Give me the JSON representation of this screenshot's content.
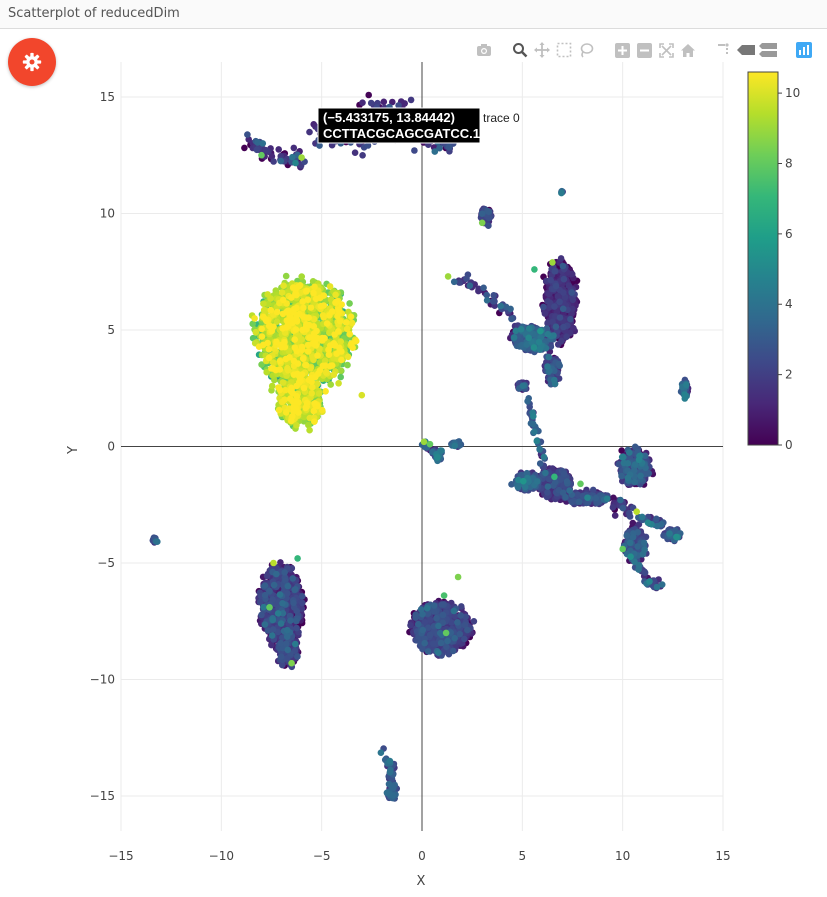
{
  "panel": {
    "title": "Scatterplot of reducedDim"
  },
  "toolbar": {
    "buttons": [
      "camera-icon",
      "zoom-icon",
      "pan-icon",
      "box-select-icon",
      "lasso-icon",
      "zoom-in-icon",
      "zoom-out-icon",
      "autoscale-icon",
      "reset-axes-icon",
      "spike-lines-icon",
      "hover-closest-icon",
      "hover-compare-icon",
      "plotly-logo-icon"
    ]
  },
  "colors": {
    "gear_button": "#f2462c",
    "viridis": [
      "#440154",
      "#482878",
      "#3e4989",
      "#31688e",
      "#26828e",
      "#1f9e89",
      "#35b779",
      "#6ece58",
      "#b5de2b",
      "#fde725"
    ]
  },
  "chart_data": {
    "type": "scatter",
    "xlabel": "X",
    "ylabel": "Y",
    "xlim": [
      -15,
      15
    ],
    "ylim": [
      -16.5,
      16.5
    ],
    "xticks": [
      -15,
      -10,
      -5,
      0,
      5,
      10,
      15
    ],
    "yticks": [
      -15,
      -10,
      -5,
      0,
      5,
      10,
      15
    ],
    "grid": true,
    "zeroline": true,
    "colorbar": {
      "min": 0,
      "max": 10.6,
      "ticks": [
        0,
        2,
        4,
        6,
        8,
        10
      ],
      "colorscale": "viridis"
    },
    "hover": {
      "x": -5.433175,
      "y": 13.84442,
      "label": "(−5.433175, 13.84442)",
      "cell": "CCTTACGCAGCGATCC.1",
      "trace": "trace 0"
    },
    "clusters": [
      {
        "cx": -5.9,
        "cy": 4.8,
        "sx": 1.8,
        "sy": 1.7,
        "n": 1300,
        "c": 9.0,
        "cs": 1.3
      },
      {
        "cx": -6.1,
        "cy": 1.9,
        "sx": 0.9,
        "sy": 0.8,
        "n": 300,
        "c": 9.5,
        "cs": 1.0
      },
      {
        "cx": -7.0,
        "cy": -6.8,
        "sx": 0.8,
        "sy": 1.3,
        "n": 700,
        "c": 1.3,
        "cs": 1.0
      },
      {
        "cx": -6.7,
        "cy": -8.8,
        "sx": 0.4,
        "sy": 0.5,
        "n": 100,
        "c": 1.5,
        "cs": 1.0
      },
      {
        "cx": 0.9,
        "cy": -7.8,
        "sx": 1.1,
        "sy": 0.8,
        "n": 800,
        "c": 1.2,
        "cs": 1.0
      },
      {
        "cx": 6.9,
        "cy": 6.2,
        "sx": 0.6,
        "sy": 1.3,
        "n": 520,
        "c": 0.7,
        "cs": 0.8
      },
      {
        "cx": 5.5,
        "cy": 4.6,
        "sx": 0.8,
        "sy": 0.4,
        "n": 200,
        "c": 2.5,
        "cs": 1.2
      },
      {
        "cx": 6.5,
        "cy": 3.3,
        "sx": 0.3,
        "sy": 0.5,
        "n": 80,
        "c": 2.0,
        "cs": 1.0
      },
      {
        "cx": 3.2,
        "cy": 9.9,
        "sx": 0.2,
        "sy": 0.3,
        "n": 60,
        "c": 1.5,
        "cs": 1.0
      },
      {
        "cx": 6.6,
        "cy": -1.6,
        "sx": 0.6,
        "sy": 0.5,
        "n": 300,
        "c": 1.0,
        "cs": 1.0
      },
      {
        "cx": 5.2,
        "cy": -1.5,
        "sx": 0.5,
        "sy": 0.3,
        "n": 100,
        "c": 2.5,
        "cs": 1.0
      },
      {
        "cx": 8.3,
        "cy": -2.2,
        "sx": 0.8,
        "sy": 0.2,
        "n": 140,
        "c": 1.5,
        "cs": 1.0
      },
      {
        "cx": 10.6,
        "cy": -0.9,
        "sx": 0.6,
        "sy": 0.6,
        "n": 260,
        "c": 2.0,
        "cs": 1.2
      },
      {
        "cx": 10.6,
        "cy": -4.2,
        "sx": 0.4,
        "sy": 0.6,
        "n": 170,
        "c": 1.8,
        "cs": 1.0
      },
      {
        "cx": 12.5,
        "cy": -3.8,
        "sx": 0.3,
        "sy": 0.2,
        "n": 40,
        "c": 2.5,
        "cs": 1.0
      },
      {
        "cx": 13.1,
        "cy": 2.5,
        "sx": 0.15,
        "sy": 0.3,
        "n": 30,
        "c": 3.0,
        "cs": 1.0
      },
      {
        "cx": -13.3,
        "cy": -4.0,
        "sx": 0.1,
        "sy": 0.1,
        "n": 10,
        "c": 2.5,
        "cs": 1.0
      },
      {
        "cx": -1.5,
        "cy": -14.8,
        "sx": 0.2,
        "sy": 0.3,
        "n": 45,
        "c": 2.5,
        "cs": 1.0
      },
      {
        "cx": 1.7,
        "cy": 0.1,
        "sx": 0.2,
        "sy": 0.1,
        "n": 20,
        "c": 2.5,
        "cs": 1.0
      },
      {
        "cx": 0.8,
        "cy": -0.3,
        "sx": 0.2,
        "sy": 0.2,
        "n": 16,
        "c": 3.0,
        "cs": 1.2
      },
      {
        "cx": 7.0,
        "cy": 10.9,
        "sx": 0.05,
        "sy": 0.05,
        "n": 4,
        "c": 3.0,
        "cs": 1.0
      },
      {
        "cx": 5.0,
        "cy": 2.6,
        "sx": 0.2,
        "sy": 0.15,
        "n": 20,
        "c": 2.0,
        "cs": 1.0
      }
    ],
    "paths": [
      {
        "x": [
          -8.6,
          -7.6,
          -6.6,
          -6.0
        ],
        "y": [
          13.1,
          12.6,
          12.3,
          12.3
        ],
        "n": 70,
        "w": 0.2,
        "c": 1.5,
        "cs": 1.2
      },
      {
        "x": [
          -5.4,
          -3.5,
          -1.6,
          0.5,
          1.2
        ],
        "y": [
          13.6,
          13.2,
          13.6,
          13.2,
          13.0
        ],
        "n": 160,
        "w": 0.25,
        "c": 1.5,
        "cs": 1.2
      },
      {
        "x": [
          -3.5,
          -1.6,
          0.0,
          0.5
        ],
        "y": [
          14.2,
          14.6,
          14.2,
          13.9
        ],
        "n": 60,
        "w": 0.25,
        "c": 1.2,
        "cs": 1.0
      },
      {
        "x": [
          1.5,
          3.0,
          4.5,
          5.2
        ],
        "y": [
          7.2,
          6.7,
          5.6,
          4.8
        ],
        "n": 60,
        "w": 0.12,
        "c": 2.0,
        "cs": 1.0
      },
      {
        "x": [
          5.2,
          5.6,
          5.9,
          6.1
        ],
        "y": [
          2.2,
          0.8,
          -0.2,
          -1.0
        ],
        "n": 40,
        "w": 0.08,
        "c": 3.0,
        "cs": 1.0
      },
      {
        "x": [
          -2.0,
          -1.6,
          -1.5
        ],
        "y": [
          -12.9,
          -13.7,
          -14.4
        ],
        "n": 30,
        "w": 0.1,
        "c": 2.5,
        "cs": 1.0
      },
      {
        "x": [
          6.5,
          8.0,
          9.5,
          10.4
        ],
        "y": [
          -2.0,
          -2.2,
          -2.3,
          -2.8
        ],
        "n": 70,
        "w": 0.15,
        "c": 1.5,
        "cs": 1.0
      },
      {
        "x": [
          10.5,
          10.8,
          11.3,
          11.8
        ],
        "y": [
          -4.5,
          -5.2,
          -5.8,
          -6.0
        ],
        "n": 40,
        "w": 0.12,
        "c": 2.5,
        "cs": 1.0
      },
      {
        "x": [
          10.8,
          11.8,
          12.3
        ],
        "y": [
          -3.1,
          -3.3,
          -3.6
        ],
        "n": 25,
        "w": 0.1,
        "c": 2.5,
        "cs": 1.0
      },
      {
        "x": [
          0.0,
          0.5,
          0.9
        ],
        "y": [
          0.2,
          -0.2,
          -0.6
        ],
        "n": 20,
        "w": 0.06,
        "c": 2.5,
        "cs": 1.0
      }
    ],
    "outliers": [
      {
        "x": -6.0,
        "y": 12.4,
        "c": 9.0
      },
      {
        "x": -8.0,
        "y": 12.5,
        "c": 8.0
      },
      {
        "x": 3.0,
        "y": 9.6,
        "c": 8.5
      },
      {
        "x": 1.3,
        "y": 7.3,
        "c": 9.0
      },
      {
        "x": 6.5,
        "y": 7.9,
        "c": 9.0
      },
      {
        "x": 5.6,
        "y": 7.6,
        "c": 7.0
      },
      {
        "x": 0.1,
        "y": 0.2,
        "c": 9.0
      },
      {
        "x": 0.4,
        "y": 0.1,
        "c": 8.0
      },
      {
        "x": 7.9,
        "y": -1.6,
        "c": 8.0
      },
      {
        "x": 6.6,
        "y": -1.3,
        "c": 7.0
      },
      {
        "x": 10.7,
        "y": -2.8,
        "c": 9.5
      },
      {
        "x": 10.0,
        "y": -4.4,
        "c": 8.0
      },
      {
        "x": -7.4,
        "y": -5.0,
        "c": 9.5
      },
      {
        "x": -6.2,
        "y": -4.8,
        "c": 7.0
      },
      {
        "x": -7.6,
        "y": -6.9,
        "c": 8.0
      },
      {
        "x": -6.5,
        "y": -9.3,
        "c": 8.5
      },
      {
        "x": 1.8,
        "y": -5.6,
        "c": 8.5
      },
      {
        "x": 1.1,
        "y": -6.4,
        "c": 7.5
      },
      {
        "x": 1.2,
        "y": -8.0,
        "c": 8.0
      },
      {
        "x": -5.6,
        "y": 0.7,
        "c": 9.5
      },
      {
        "x": -3.0,
        "y": 2.2,
        "c": 10.0
      }
    ]
  }
}
